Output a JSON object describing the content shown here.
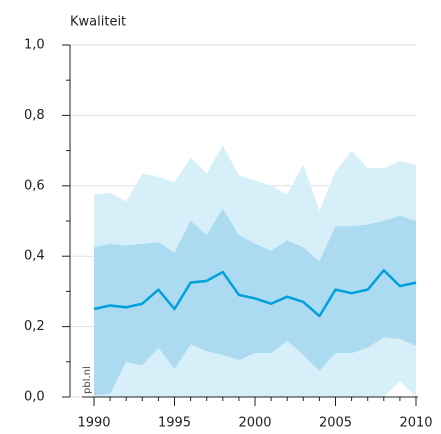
{
  "chart_data": {
    "type": "fan-line",
    "title": "Kwaliteit",
    "watermark": "pbl.nl",
    "x": [
      1990,
      1991,
      1992,
      1993,
      1994,
      1995,
      1996,
      1997,
      1998,
      1999,
      2000,
      2001,
      2002,
      2003,
      2004,
      2005,
      2006,
      2007,
      2008,
      2009,
      2010
    ],
    "series": [
      {
        "color": "#00a0dc",
        "values": [
          0.25,
          0.26,
          0.255,
          0.265,
          0.305,
          0.25,
          0.325,
          0.33,
          0.355,
          0.29,
          0.28,
          0.265,
          0.285,
          0.27,
          0.23,
          0.305,
          0.295,
          0.305,
          0.36,
          0.315,
          0.325
        ]
      }
    ],
    "bands": [
      {
        "color": "#d6eff9",
        "upper": [
          0.575,
          0.58,
          0.555,
          0.635,
          0.625,
          0.61,
          0.68,
          0.635,
          0.715,
          0.63,
          0.615,
          0.6,
          0.575,
          0.66,
          0.53,
          0.64,
          0.7,
          0.65,
          0.65,
          0.67,
          0.66
        ],
        "lower": [
          0,
          0,
          0,
          0,
          0,
          0,
          0,
          0,
          0,
          0,
          0,
          0,
          0,
          0,
          0,
          0,
          0,
          0,
          0,
          0.045,
          0
        ]
      },
      {
        "color": "#abdaf1",
        "upper": [
          0.425,
          0.435,
          0.43,
          0.435,
          0.44,
          0.41,
          0.5,
          0.46,
          0.535,
          0.46,
          0.435,
          0.415,
          0.445,
          0.425,
          0.385,
          0.485,
          0.485,
          0.49,
          0.5,
          0.515,
          0.5
        ],
        "lower": [
          0.005,
          0.01,
          0.1,
          0.09,
          0.14,
          0.08,
          0.15,
          0.13,
          0.12,
          0.105,
          0.125,
          0.125,
          0.16,
          0.12,
          0.075,
          0.125,
          0.125,
          0.14,
          0.17,
          0.165,
          0.145
        ]
      }
    ],
    "xlim": [
      1990,
      2010
    ],
    "xticks": [
      1990,
      1995,
      2000,
      2005,
      2010
    ],
    "ylim": [
      0,
      1
    ],
    "yticks": [
      {
        "value": 0,
        "label": "0,0"
      },
      {
        "value": 0.2,
        "label": "0,2"
      },
      {
        "value": 0.4,
        "label": "0,4"
      },
      {
        "value": 0.6,
        "label": "0,6"
      },
      {
        "value": 0.8,
        "label": "0,8"
      },
      {
        "value": 1,
        "label": "1,0"
      }
    ],
    "grid": true
  }
}
